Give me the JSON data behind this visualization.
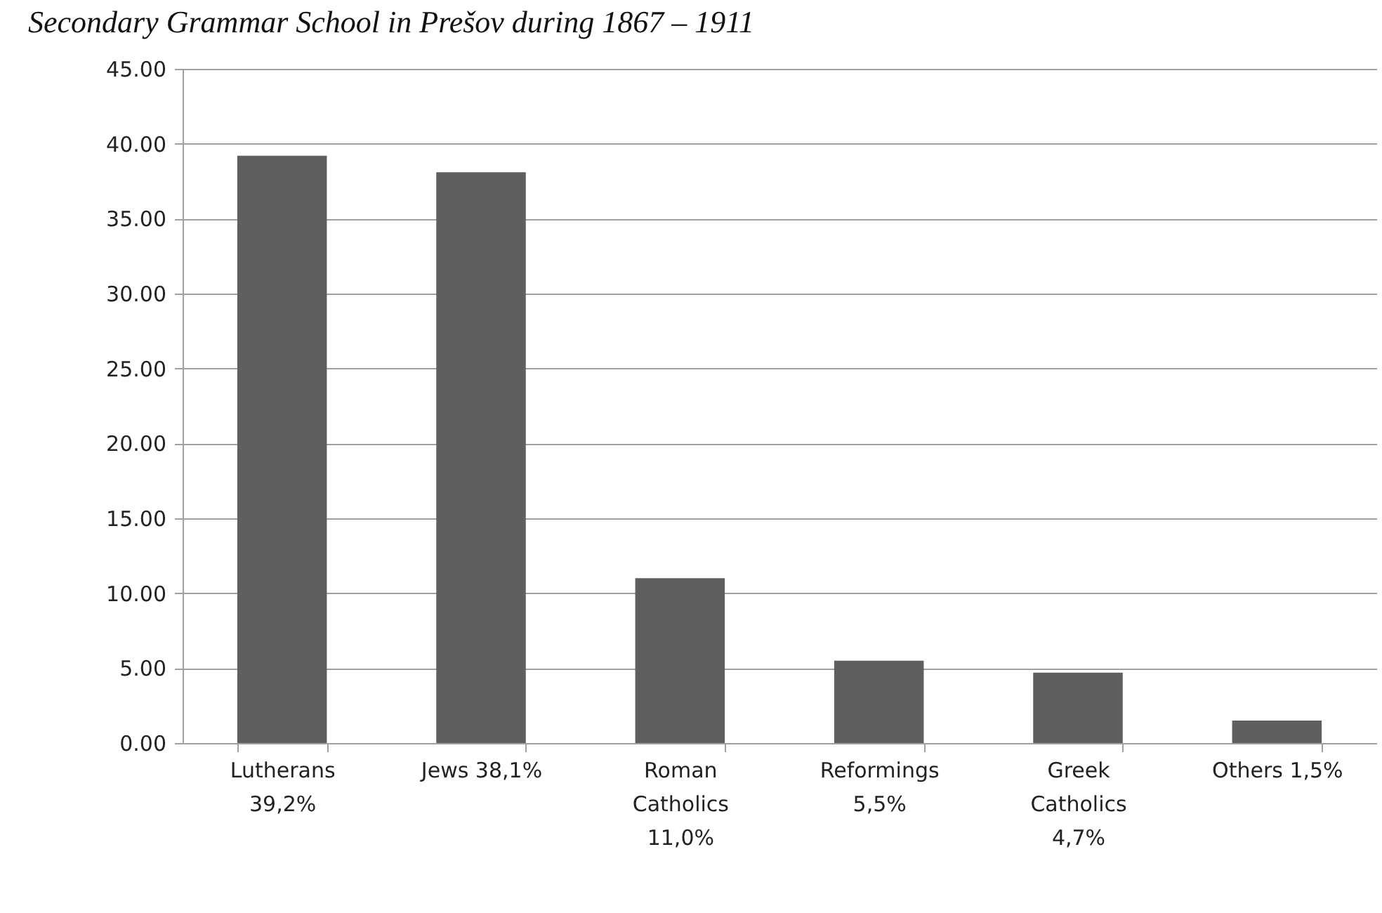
{
  "chart_data": {
    "type": "bar",
    "title": "Secondary Grammar School in Prešov during 1867 – 1911",
    "categories": [
      "Lutherans 39,2%",
      "Jews 38,1%",
      "Roman Catholics 11,0%",
      "Reformings 5,5%",
      "Greek Catholics 4,7%",
      "Others 1,5%"
    ],
    "values": [
      39.2,
      38.1,
      11.0,
      5.5,
      4.7,
      1.5
    ],
    "color": "#5f5f5f",
    "ylim": [
      0,
      45
    ],
    "yticks": [
      {
        "value": 0,
        "label": "0.00"
      },
      {
        "value": 5,
        "label": "5.00"
      },
      {
        "value": 10,
        "label": "10.00"
      },
      {
        "value": 15,
        "label": "15.00"
      },
      {
        "value": 20,
        "label": "20.00"
      },
      {
        "value": 25,
        "label": "25.00"
      },
      {
        "value": 30,
        "label": "30.00"
      },
      {
        "value": 35,
        "label": "35.00"
      },
      {
        "value": 40,
        "label": "40.00"
      },
      {
        "value": 45,
        "label": "45.00"
      }
    ],
    "grid": "y"
  }
}
